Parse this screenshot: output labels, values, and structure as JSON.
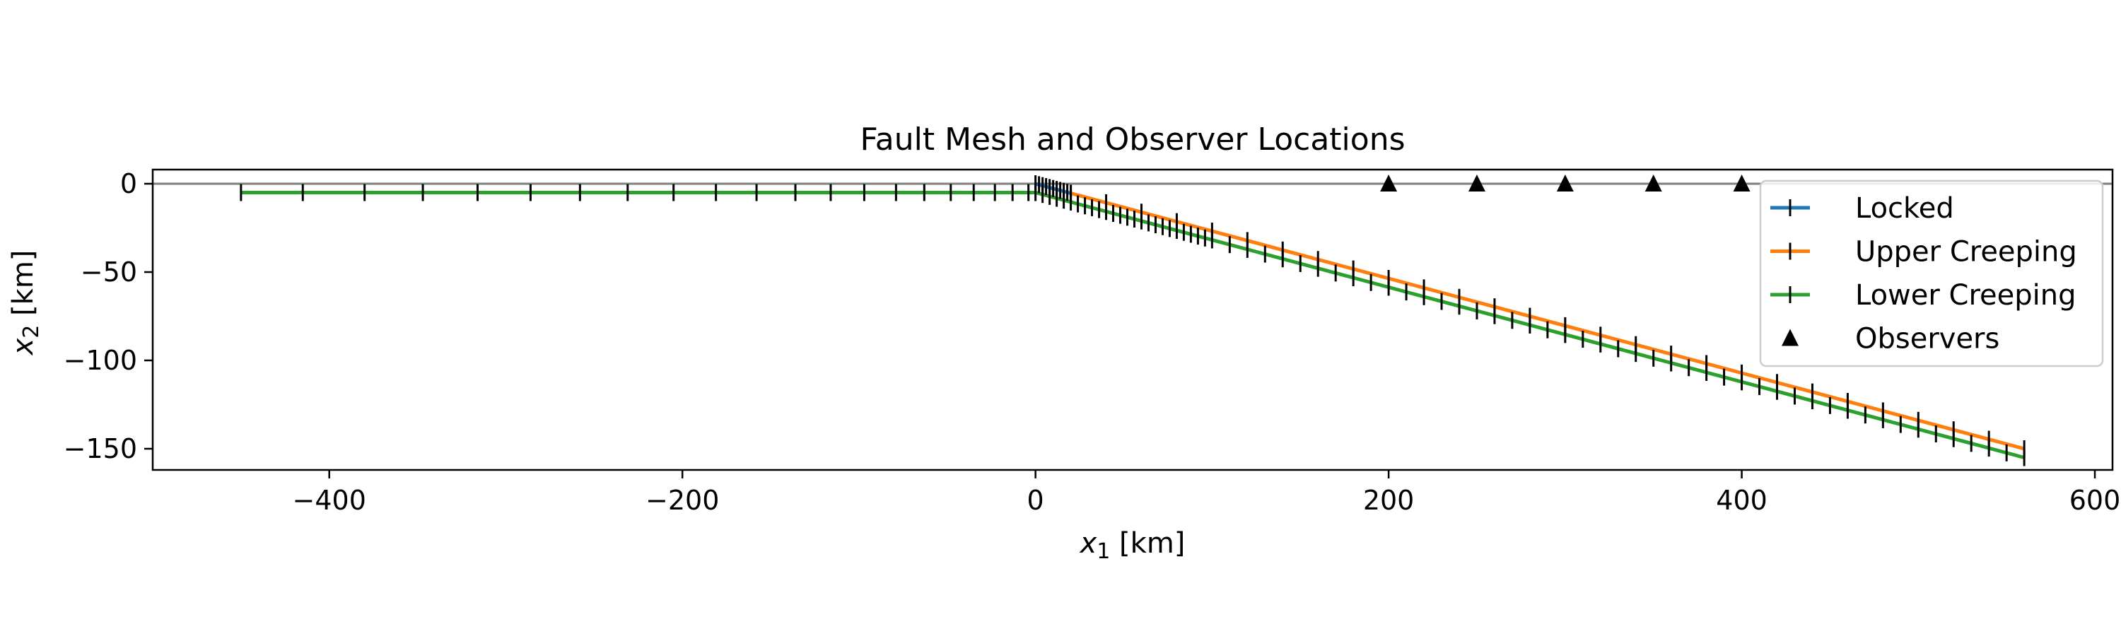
{
  "chart_data": {
    "type": "line",
    "title": "Fault Mesh and Observer Locations",
    "xlabel": {
      "var": "x",
      "sub": "1",
      "unit": " [km]"
    },
    "ylabel": {
      "var": "x",
      "sub": "2",
      "unit": " [km]"
    },
    "xlim": [
      -500,
      610
    ],
    "ylim": [
      -162,
      8
    ],
    "xticks": [
      -400,
      -200,
      0,
      200,
      400,
      600
    ],
    "xtick_labels": [
      "−400",
      "−200",
      "0",
      "200",
      "400",
      "600"
    ],
    "yticks": [
      0,
      -50,
      -100,
      -150
    ],
    "ytick_labels": [
      "0",
      "−50",
      "−100",
      "−150"
    ],
    "grid": false,
    "surface_line": {
      "y": 0,
      "color": "#808080"
    },
    "legend_position": "top-right",
    "series": [
      {
        "name": "Locked",
        "color": "#1f77b4",
        "points": [
          [
            0,
            0
          ],
          [
            20,
            -5.4
          ]
        ],
        "element_edges_x": [
          0,
          2,
          4,
          6,
          8,
          10,
          12,
          14,
          16,
          18,
          20
        ]
      },
      {
        "name": "Upper Creeping",
        "color": "#ff7f0e",
        "points": [
          [
            20,
            -5.4
          ],
          [
            560,
            -150
          ]
        ],
        "element_edges_x": [
          20,
          40,
          60,
          80,
          100,
          120,
          140,
          160,
          180,
          200,
          220,
          240,
          260,
          280,
          300,
          320,
          340,
          360,
          380,
          400,
          420,
          440,
          460,
          480,
          500,
          520,
          540,
          560
        ]
      },
      {
        "name": "Lower Creeping",
        "color": "#2ca02c",
        "points": [
          [
            -450,
            -5
          ],
          [
            0,
            -5
          ],
          [
            560,
            -155
          ]
        ],
        "element_edges_x": [
          -450,
          -415,
          -380,
          -347,
          -316,
          -286,
          -258,
          -231,
          -205,
          -181,
          -158,
          -136,
          -116,
          -97,
          -79,
          -63,
          -48,
          -35,
          -23,
          -13,
          -4,
          0,
          4,
          8,
          12,
          16,
          20,
          24,
          28,
          32,
          36,
          40,
          44,
          48,
          52,
          56,
          60,
          64,
          68,
          72,
          76,
          80,
          84,
          88,
          92,
          96,
          100,
          110,
          120,
          130,
          140,
          150,
          160,
          170,
          180,
          190,
          200,
          210,
          220,
          230,
          240,
          250,
          260,
          270,
          280,
          290,
          300,
          310,
          320,
          330,
          340,
          350,
          360,
          370,
          380,
          390,
          400,
          410,
          420,
          430,
          440,
          450,
          460,
          470,
          480,
          490,
          500,
          510,
          520,
          530,
          540,
          550,
          560
        ]
      }
    ],
    "observers": {
      "name": "Observers",
      "color": "#000000",
      "marker": "triangle",
      "x": [
        200,
        250,
        300,
        350,
        400
      ],
      "y": [
        0,
        0,
        0,
        0,
        0
      ]
    }
  }
}
